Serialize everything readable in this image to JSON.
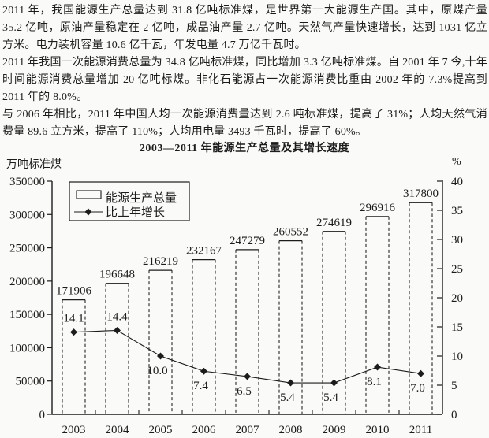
{
  "document": {
    "paragraphs": [
      "2011 年，我国能源生产总量达到 31.8 亿吨标准煤，是世界第一大能源生产国。其中，原煤产量 35.2 亿吨，原油产量稳定在 2 亿吨，成品油产量 2.7 亿吨。天然气产量快速增长，达到 1031 亿立方米。电力装机容量 10.6 亿千瓦，年发电量 4.7 万亿千瓦时。",
      "2011 年我国一次能源消费总量为 34.8 亿吨标准煤，同比增加 3.3 亿吨标准煤。自 2001 年 7 今,十年时间能源消费总量增加 20 亿吨标煤。非化石能源占一次能源消费比重由 2002 年的 7.3%提高到 2011 年的 8.0%。",
      "与 2006 年相比，2011 年中国人均一次能源消费量达到 2.6 吨标准煤，提高了 31%；人均天然气消费量 89.6 立方米，提高了 110%；人均用电量 3493 千瓦时，提高了 60%。"
    ]
  },
  "chart": {
    "title": "2003—2011 年能源生产总量及其增长速度",
    "left_unit": "万吨标准煤",
    "right_unit": "%"
  },
  "chart_data": {
    "type": "bar",
    "title": "2003—2011 年能源生产总量及其增长速度",
    "categories": [
      "2003",
      "2004",
      "2005",
      "2006",
      "2007",
      "2008",
      "2009",
      "2010",
      "2011"
    ],
    "series": [
      {
        "name": "能源生产总量",
        "type": "bar",
        "axis": "left",
        "unit": "万吨标准煤",
        "values": [
          171906,
          196648,
          216219,
          232167,
          247279,
          260552,
          274619,
          296916,
          317800
        ]
      },
      {
        "name": "比上年增长",
        "type": "line",
        "axis": "right",
        "unit": "%",
        "values": [
          14.1,
          14.4,
          10.0,
          7.4,
          6.5,
          5.4,
          5.4,
          8.1,
          7.0
        ],
        "labels": [
          "14.1",
          "14.4",
          "10.0",
          "7.4",
          "6.5",
          "5.4",
          "5.4",
          "8.1",
          "7.0"
        ],
        "label_positions": [
          "above",
          "above",
          "below",
          "below",
          "below",
          "below",
          "below",
          "below",
          "below"
        ]
      }
    ],
    "left_axis": {
      "label": "万吨标准煤",
      "min": 0,
      "max": 350000,
      "step": 50000,
      "ticks": [
        0,
        50000,
        100000,
        150000,
        200000,
        250000,
        300000,
        350000
      ]
    },
    "right_axis": {
      "label": "%",
      "min": 0,
      "max": 40,
      "step": 5,
      "ticks": [
        0,
        5,
        10,
        15,
        20,
        25,
        30,
        35,
        40
      ]
    },
    "legend": {
      "position": "top-left-inside",
      "entries": [
        "能源生产总量",
        "比上年增长"
      ]
    },
    "grid": "off",
    "colors": {
      "ink": "#1c1c1c",
      "paper": "#fafaf8"
    }
  }
}
